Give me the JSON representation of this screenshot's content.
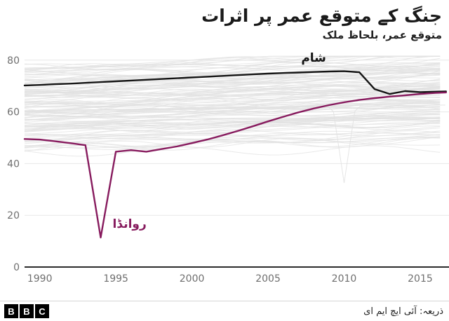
{
  "header": {
    "title": "جنگ کے متوقع عمر پر اثرات",
    "subtitle": "متوقع عمر، بلحاظ ملک"
  },
  "footer": {
    "logo_letters": [
      "B",
      "B",
      "C"
    ],
    "source": "ذریعہ: آئی ایچ ایم ای"
  },
  "chart_data": {
    "type": "line",
    "title": "جنگ کے متوقع عمر پر اثرات",
    "subtitle": "متوقع عمر، بلحاظ ملک",
    "source": "ذریعہ: آئی ایچ ایم ای",
    "xlim": [
      1989,
      2016.8
    ],
    "ylim": [
      0,
      84
    ],
    "x_ticks": [
      1990,
      1995,
      2000,
      2005,
      2010,
      2015
    ],
    "y_ticks": [
      0,
      20,
      40,
      60,
      80
    ],
    "grid": "horizontal-only",
    "colors": {
      "grid": "#e7e7e7",
      "axis": "#2b2b2b",
      "tick_text": "#6f6f6f",
      "background_line": "#e1e1e1"
    },
    "background_lines": {
      "count": 138,
      "color": "#e1e1e1",
      "description": "unlabelled life-expectancy lines for other countries",
      "anomaly_dip": {
        "year": 2010,
        "base": 60.5,
        "value": 32.5
      }
    },
    "series": [
      {
        "name": "شام",
        "color": "#141414",
        "label_pos": {
          "x": 2008,
          "y": 79.4
        },
        "points": [
          [
            1989,
            70.2
          ],
          [
            1990,
            70.4
          ],
          [
            1991,
            70.7
          ],
          [
            1992,
            70.9
          ],
          [
            1993,
            71.2
          ],
          [
            1994,
            71.5
          ],
          [
            1995,
            71.8
          ],
          [
            1996,
            72.1
          ],
          [
            1997,
            72.4
          ],
          [
            1998,
            72.7
          ],
          [
            1999,
            73.0
          ],
          [
            2000,
            73.3
          ],
          [
            2001,
            73.6
          ],
          [
            2002,
            73.9
          ],
          [
            2003,
            74.2
          ],
          [
            2004,
            74.5
          ],
          [
            2005,
            74.8
          ],
          [
            2006,
            75.0
          ],
          [
            2007,
            75.2
          ],
          [
            2008,
            75.4
          ],
          [
            2009,
            75.6
          ],
          [
            2010,
            75.7
          ],
          [
            2011,
            75.3
          ],
          [
            2012,
            68.8
          ],
          [
            2013,
            66.9
          ],
          [
            2014,
            68.0
          ],
          [
            2015,
            67.6
          ],
          [
            2016,
            67.8
          ],
          [
            2016.7,
            67.9
          ]
        ]
      },
      {
        "name": "روانڈا",
        "color": "#871b5e",
        "label_pos": {
          "x": 1995.9,
          "y": 15.2
        },
        "points": [
          [
            1989,
            49.5
          ],
          [
            1990,
            49.3
          ],
          [
            1991,
            48.6
          ],
          [
            1992,
            47.9
          ],
          [
            1993,
            47.1
          ],
          [
            1994,
            11.4
          ],
          [
            1995,
            44.6
          ],
          [
            1996,
            45.2
          ],
          [
            1997,
            44.6
          ],
          [
            1998,
            45.6
          ],
          [
            1999,
            46.6
          ],
          [
            2000,
            47.9
          ],
          [
            2001,
            49.3
          ],
          [
            2002,
            50.9
          ],
          [
            2003,
            52.6
          ],
          [
            2004,
            54.4
          ],
          [
            2005,
            56.3
          ],
          [
            2006,
            58.1
          ],
          [
            2007,
            59.8
          ],
          [
            2008,
            61.3
          ],
          [
            2009,
            62.6
          ],
          [
            2010,
            63.7
          ],
          [
            2011,
            64.6
          ],
          [
            2012,
            65.3
          ],
          [
            2013,
            65.9
          ],
          [
            2014,
            66.4
          ],
          [
            2015,
            66.9
          ],
          [
            2016,
            67.3
          ],
          [
            2016.7,
            67.5
          ]
        ]
      }
    ]
  }
}
